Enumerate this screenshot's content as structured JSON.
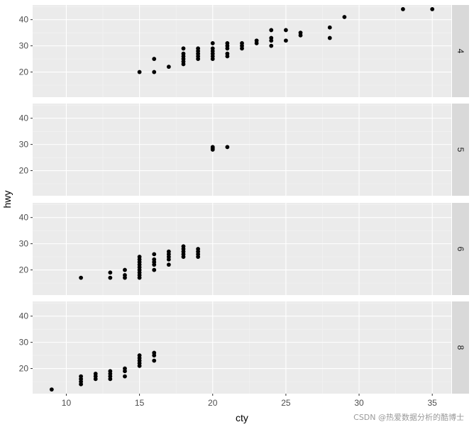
{
  "chart_data": {
    "type": "scatter",
    "facet_by": "cyl",
    "facet_layout": "rows",
    "xlabel": "cty",
    "ylabel": "hwy",
    "xlim": [
      7.7,
      36.3
    ],
    "ylim": [
      10.4,
      45.6
    ],
    "x_ticks": [
      10,
      15,
      20,
      25,
      30,
      35
    ],
    "y_ticks": [
      20,
      30,
      40
    ],
    "grid": true,
    "colors": {
      "panel_bg": "#ebebeb",
      "grid_major": "#ffffff",
      "grid_minor": "#f4f4f4",
      "strip_bg": "#d9d9d9",
      "point": "#000000"
    },
    "panels": [
      {
        "label": "4",
        "points": [
          [
            15,
            20
          ],
          [
            16,
            20
          ],
          [
            16,
            25
          ],
          [
            17,
            22
          ],
          [
            18,
            23
          ],
          [
            18,
            24
          ],
          [
            18,
            25
          ],
          [
            18,
            26
          ],
          [
            18,
            27
          ],
          [
            18,
            29
          ],
          [
            19,
            25
          ],
          [
            19,
            26
          ],
          [
            19,
            27
          ],
          [
            19,
            28
          ],
          [
            19,
            29
          ],
          [
            20,
            25
          ],
          [
            20,
            26
          ],
          [
            20,
            27
          ],
          [
            20,
            28
          ],
          [
            20,
            29
          ],
          [
            20,
            31
          ],
          [
            21,
            26
          ],
          [
            21,
            27
          ],
          [
            21,
            29
          ],
          [
            21,
            30
          ],
          [
            21,
            31
          ],
          [
            22,
            29
          ],
          [
            22,
            30
          ],
          [
            22,
            31
          ],
          [
            23,
            31
          ],
          [
            23,
            32
          ],
          [
            24,
            30
          ],
          [
            24,
            32
          ],
          [
            24,
            33
          ],
          [
            24,
            36
          ],
          [
            25,
            32
          ],
          [
            25,
            36
          ],
          [
            26,
            34
          ],
          [
            26,
            35
          ],
          [
            28,
            33
          ],
          [
            28,
            37
          ],
          [
            29,
            41
          ],
          [
            33,
            44
          ],
          [
            35,
            44
          ]
        ]
      },
      {
        "label": "5",
        "points": [
          [
            20,
            28
          ],
          [
            20,
            28.5
          ],
          [
            20,
            29
          ],
          [
            21,
            29
          ]
        ]
      },
      {
        "label": "6",
        "points": [
          [
            11,
            17
          ],
          [
            13,
            17
          ],
          [
            13,
            19
          ],
          [
            14,
            17
          ],
          [
            14,
            18
          ],
          [
            14,
            20
          ],
          [
            15,
            17
          ],
          [
            15,
            18
          ],
          [
            15,
            19
          ],
          [
            15,
            20
          ],
          [
            15,
            21
          ],
          [
            15,
            22
          ],
          [
            15,
            23
          ],
          [
            15,
            24
          ],
          [
            15,
            25
          ],
          [
            16,
            20
          ],
          [
            16,
            22
          ],
          [
            16,
            23
          ],
          [
            16,
            24
          ],
          [
            16,
            26
          ],
          [
            17,
            22
          ],
          [
            17,
            24
          ],
          [
            17,
            25
          ],
          [
            17,
            26
          ],
          [
            17,
            27
          ],
          [
            18,
            25
          ],
          [
            18,
            26
          ],
          [
            18,
            27
          ],
          [
            18,
            28
          ],
          [
            18,
            29
          ],
          [
            19,
            25
          ],
          [
            19,
            26
          ],
          [
            19,
            27
          ],
          [
            19,
            28
          ]
        ]
      },
      {
        "label": "8",
        "points": [
          [
            9,
            12
          ],
          [
            11,
            14
          ],
          [
            11,
            15
          ],
          [
            11,
            16
          ],
          [
            11,
            17
          ],
          [
            12,
            16
          ],
          [
            12,
            17
          ],
          [
            12,
            18
          ],
          [
            13,
            16
          ],
          [
            13,
            17
          ],
          [
            13,
            18
          ],
          [
            13,
            19
          ],
          [
            14,
            17
          ],
          [
            14,
            19
          ],
          [
            14,
            20
          ],
          [
            15,
            21
          ],
          [
            15,
            22
          ],
          [
            15,
            23
          ],
          [
            15,
            24
          ],
          [
            15,
            25
          ],
          [
            16,
            23
          ],
          [
            16,
            25
          ],
          [
            16,
            26
          ]
        ]
      }
    ]
  },
  "watermark": "CSDN @热爱数据分析的酷博士"
}
